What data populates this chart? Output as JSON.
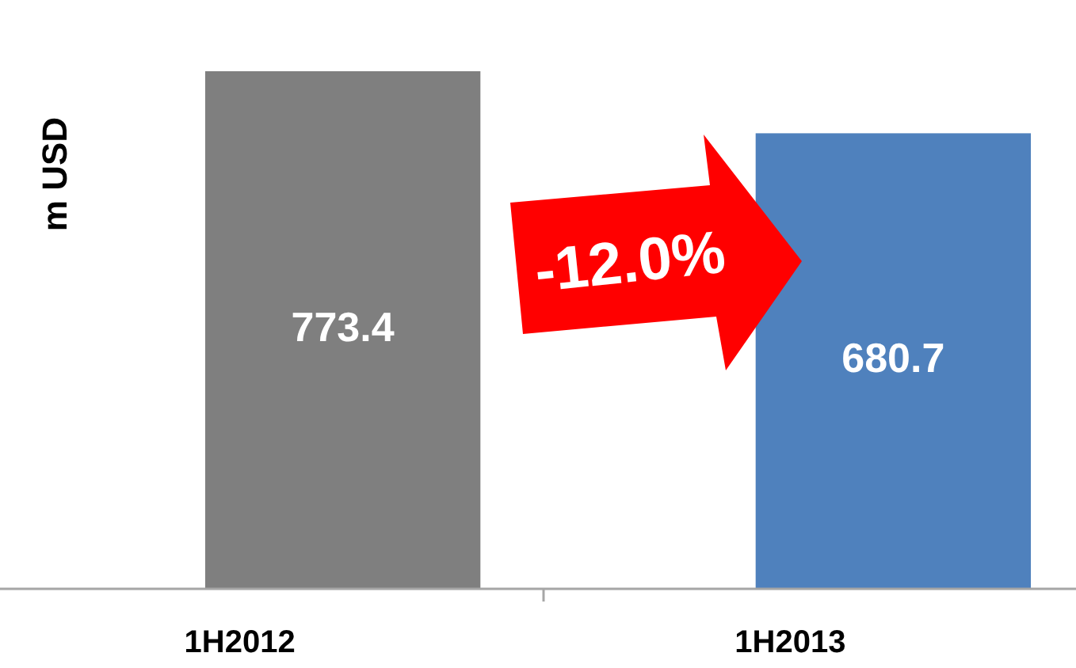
{
  "chart_data": {
    "type": "bar",
    "ylabel": "m USD",
    "categories": [
      "1H2012",
      "1H2013"
    ],
    "values": [
      773.4,
      680.7
    ],
    "colors": [
      "#7f7f7f",
      "#4f81bd"
    ],
    "data_labels": true,
    "annotations": [
      "-12.0%"
    ]
  }
}
